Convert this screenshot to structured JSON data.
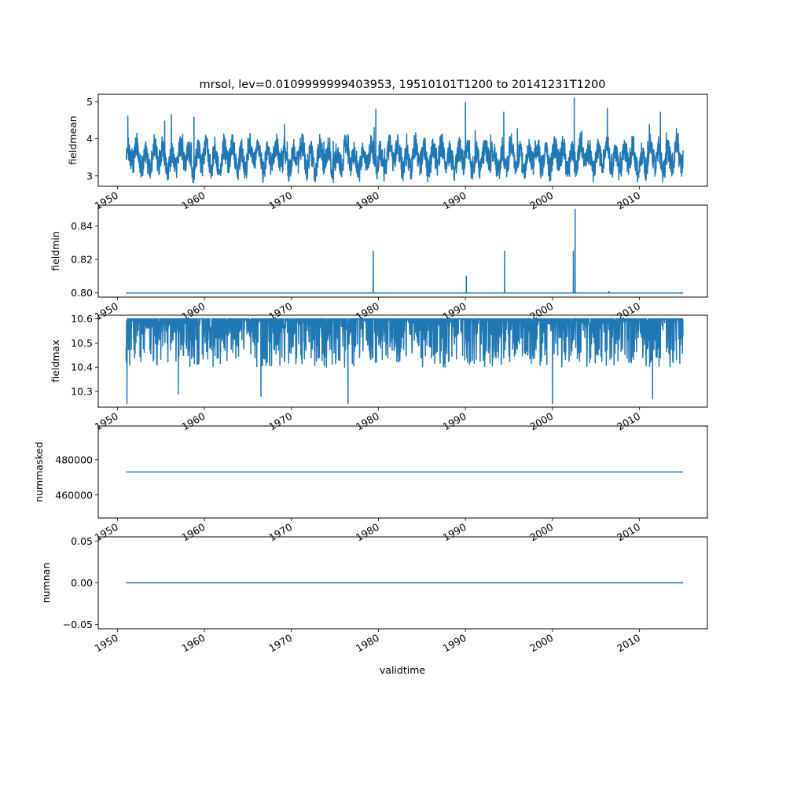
{
  "title": "mrsol, lev=0.0109999999403953, 19510101T1200 to 20141231T1200",
  "xlabel": "validtime",
  "colors": {
    "line": "#1f77b4",
    "axes": "#000000",
    "background": "#ffffff"
  },
  "chart_data": [
    {
      "type": "line",
      "ylabel": "fieldmean",
      "xlim": [
        1947.8,
        2017.8
      ],
      "ylim": [
        2.72,
        5.2
      ],
      "yticks": [
        3,
        4,
        5
      ],
      "ytick_labels": [
        "3",
        "4",
        "5"
      ],
      "xticks": [
        1950,
        1960,
        1970,
        1980,
        1990,
        2000,
        2010
      ],
      "xtick_labels": [
        "1950",
        "1960",
        "1970",
        "1980",
        "1990",
        "2000",
        "2010"
      ],
      "x_range": [
        1951.0,
        2015.0
      ],
      "signal": {
        "kind": "noise",
        "base": 3.45,
        "amplitude": 0.45,
        "min": 2.82,
        "max": 5.1
      },
      "spikes": [
        {
          "x": 1951.2,
          "y": 4.62
        },
        {
          "x": 1956.2,
          "y": 4.65
        },
        {
          "x": 1958.8,
          "y": 4.58
        },
        {
          "x": 1979.7,
          "y": 4.8
        },
        {
          "x": 1990.0,
          "y": 4.98
        },
        {
          "x": 1994.4,
          "y": 4.72
        },
        {
          "x": 2002.5,
          "y": 5.1
        },
        {
          "x": 2006.3,
          "y": 4.82
        },
        {
          "x": 2012.4,
          "y": 4.72
        }
      ],
      "grid": false,
      "show_xtick_labels": true
    },
    {
      "type": "line",
      "ylabel": "fieldmin",
      "xlim": [
        1947.8,
        2017.8
      ],
      "ylim": [
        0.7975,
        0.8525
      ],
      "yticks": [
        0.8,
        0.82,
        0.84
      ],
      "ytick_labels": [
        "0.80",
        "0.82",
        "0.84"
      ],
      "xticks": [
        1950,
        1960,
        1970,
        1980,
        1990,
        2000,
        2010
      ],
      "xtick_labels": [
        "1950",
        "1960",
        "1970",
        "1980",
        "1990",
        "2000",
        "2010"
      ],
      "x_range": [
        1951.0,
        2015.0
      ],
      "signal": {
        "kind": "constant",
        "base": 0.8
      },
      "spikes": [
        {
          "x": 1979.4,
          "y": 0.825
        },
        {
          "x": 1990.1,
          "y": 0.81
        },
        {
          "x": 1994.5,
          "y": 0.825
        },
        {
          "x": 2002.4,
          "y": 0.825
        },
        {
          "x": 2002.6,
          "y": 0.85
        },
        {
          "x": 2006.5,
          "y": 0.801
        }
      ],
      "grid": false,
      "show_xtick_labels": true
    },
    {
      "type": "line",
      "ylabel": "fieldmax",
      "xlim": [
        1947.8,
        2017.8
      ],
      "ylim": [
        10.235,
        10.615
      ],
      "yticks": [
        10.3,
        10.4,
        10.5,
        10.6
      ],
      "ytick_labels": [
        "10.3",
        "10.4",
        "10.5",
        "10.6"
      ],
      "xticks": [
        1950,
        1960,
        1970,
        1980,
        1990,
        2000,
        2010
      ],
      "xtick_labels": [
        "1950",
        "1960",
        "1970",
        "1980",
        "1990",
        "2000",
        "2010"
      ],
      "x_range": [
        1951.0,
        2015.0
      ],
      "signal": {
        "kind": "ceiling",
        "base": 10.6,
        "amplitude": 0.2,
        "min": 10.33,
        "max": 10.6
      },
      "spikes": [
        {
          "x": 1951.1,
          "y": 10.25
        },
        {
          "x": 1976.5,
          "y": 10.25
        },
        {
          "x": 2000.0,
          "y": 10.25
        },
        {
          "x": 2011.5,
          "y": 10.27
        },
        {
          "x": 1966.5,
          "y": 10.28
        },
        {
          "x": 1957.0,
          "y": 10.29
        }
      ],
      "grid": false,
      "show_xtick_labels": true
    },
    {
      "type": "line",
      "ylabel": "nummasked",
      "xlim": [
        1947.8,
        2017.8
      ],
      "ylim": [
        447000,
        499000
      ],
      "yticks": [
        460000,
        480000
      ],
      "ytick_labels": [
        "460000",
        "480000"
      ],
      "xticks": [
        1950,
        1960,
        1970,
        1980,
        1990,
        2000,
        2010
      ],
      "xtick_labels": [
        "1950",
        "1960",
        "1970",
        "1980",
        "1990",
        "2000",
        "2010"
      ],
      "x_range": [
        1951.0,
        2015.0
      ],
      "signal": {
        "kind": "constant",
        "base": 473000
      },
      "spikes": [],
      "grid": false,
      "show_xtick_labels": true
    },
    {
      "type": "line",
      "ylabel": "numnan",
      "xlim": [
        1947.8,
        2017.8
      ],
      "ylim": [
        -0.055,
        0.055
      ],
      "yticks": [
        -0.05,
        0.0,
        0.05
      ],
      "ytick_labels": [
        "−0.05",
        "0.00",
        "0.05"
      ],
      "xticks": [
        1950,
        1960,
        1970,
        1980,
        1990,
        2000,
        2010
      ],
      "xtick_labels": [
        "1950",
        "1960",
        "1970",
        "1980",
        "1990",
        "2000",
        "2010"
      ],
      "x_range": [
        1951.0,
        2015.0
      ],
      "signal": {
        "kind": "constant",
        "base": 0.0
      },
      "spikes": [],
      "grid": false,
      "show_xtick_labels": true
    }
  ]
}
